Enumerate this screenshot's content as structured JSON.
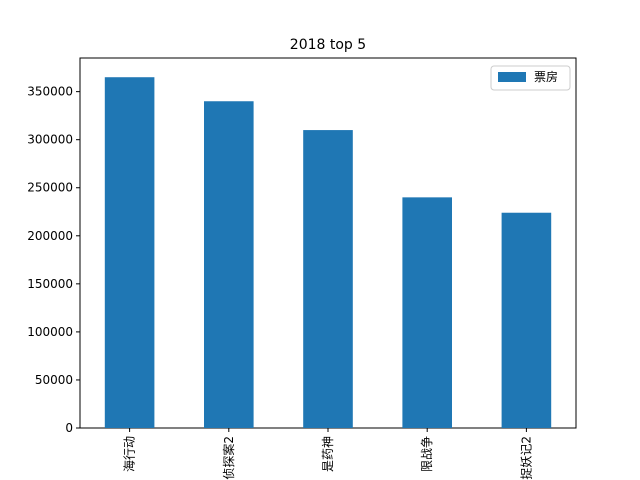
{
  "chart_data": {
    "type": "bar",
    "title": "2018 top 5",
    "categories": [
      "海行动",
      "侦探案2",
      "是药神",
      "限战争",
      "捉妖记2"
    ],
    "series": [
      {
        "name": "票房",
        "values": [
          365000,
          340000,
          310000,
          240000,
          224000
        ],
        "color": "#1f77b4"
      }
    ],
    "ylim": [
      0,
      385000
    ],
    "yticks": [
      0,
      50000,
      100000,
      150000,
      200000,
      250000,
      300000,
      350000
    ],
    "legend": "top-right",
    "grid": false
  }
}
